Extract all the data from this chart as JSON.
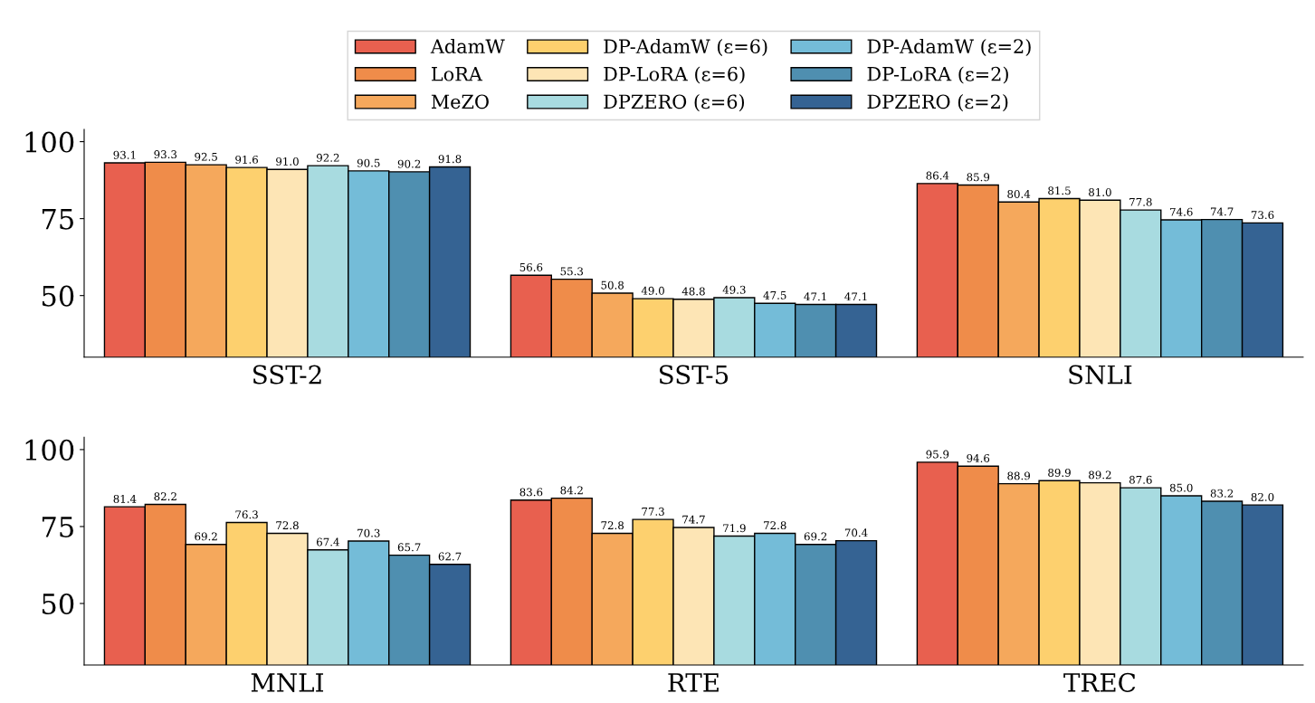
{
  "chart_data": [
    {
      "type": "bar",
      "categories": [
        "SST-2",
        "SST-5",
        "SNLI"
      ],
      "ylim": [
        30,
        104
      ],
      "yticks": [
        50,
        75,
        100
      ],
      "legend": "top",
      "grid": false,
      "series": [
        {
          "name": "AdamW",
          "color": "#e8604f",
          "values": [
            93.1,
            56.6,
            86.4
          ],
          "value_labels": [
            "93.1",
            "56.6",
            "86.4"
          ]
        },
        {
          "name": "LoRA",
          "color": "#ef8c4a",
          "values": [
            93.3,
            55.3,
            85.9
          ],
          "value_labels": [
            "93.3",
            "55.3",
            "85.9"
          ]
        },
        {
          "name": "MeZO",
          "color": "#f5a85c",
          "values": [
            92.5,
            50.8,
            80.4
          ],
          "value_labels": [
            "92.5",
            "50.8",
            "80.4"
          ]
        },
        {
          "name": "DP-AdamW (ε=6)",
          "color": "#fdd06e",
          "values": [
            91.6,
            49.0,
            81.5
          ],
          "value_labels": [
            "91.6",
            "49.0",
            "81.5"
          ]
        },
        {
          "name": "DP-LoRA (ε=6)",
          "color": "#fde5b5",
          "values": [
            91.0,
            48.8,
            81.0
          ],
          "value_labels": [
            "91.0",
            "48.8",
            "81.0"
          ]
        },
        {
          "name": "DPZERO (ε=6)",
          "color": "#a8dbe0",
          "values": [
            92.2,
            49.3,
            77.8
          ],
          "value_labels": [
            "92.2",
            "49.3",
            "77.8"
          ]
        },
        {
          "name": "DP-AdamW (ε=2)",
          "color": "#74bcd8",
          "values": [
            90.5,
            47.5,
            74.6
          ],
          "value_labels": [
            "90.5",
            "47.5",
            "74.6"
          ]
        },
        {
          "name": "DP-LoRA (ε=2)",
          "color": "#4f8fb0",
          "values": [
            90.2,
            47.1,
            74.7
          ],
          "value_labels": [
            "90.2",
            "47.1",
            "74.7"
          ]
        },
        {
          "name": "DPZERO (ε=2)",
          "color": "#356393",
          "values": [
            91.8,
            47.1,
            73.6
          ],
          "value_labels": [
            "91.8",
            "47.1",
            "73.6"
          ]
        }
      ]
    },
    {
      "type": "bar",
      "categories": [
        "MNLI",
        "RTE",
        "TREC"
      ],
      "ylim": [
        30,
        104
      ],
      "yticks": [
        50,
        75,
        100
      ],
      "grid": false,
      "series": [
        {
          "color": "#e8604f",
          "values": [
            81.4,
            83.6,
            95.9
          ],
          "value_labels": [
            "81.4",
            "83.6",
            "95.9"
          ]
        },
        {
          "color": "#ef8c4a",
          "values": [
            82.2,
            84.2,
            94.6
          ],
          "value_labels": [
            "82.2",
            "84.2",
            "94.6"
          ]
        },
        {
          "color": "#f5a85c",
          "values": [
            69.2,
            72.8,
            88.9
          ],
          "value_labels": [
            "69.2",
            "72.8",
            "88.9"
          ]
        },
        {
          "color": "#fdd06e",
          "values": [
            76.3,
            77.3,
            89.9
          ],
          "value_labels": [
            "76.3",
            "77.3",
            "89.9"
          ]
        },
        {
          "color": "#fde5b5",
          "values": [
            72.8,
            74.7,
            89.2
          ],
          "value_labels": [
            "72.8",
            "74.7",
            "89.2"
          ]
        },
        {
          "color": "#a8dbe0",
          "values": [
            67.4,
            71.9,
            87.6
          ],
          "value_labels": [
            "67.4",
            "71.9",
            "87.6"
          ]
        },
        {
          "color": "#74bcd8",
          "values": [
            70.3,
            72.8,
            85.0
          ],
          "value_labels": [
            "70.3",
            "72.8",
            "85.0"
          ]
        },
        {
          "color": "#4f8fb0",
          "values": [
            65.7,
            69.2,
            83.2
          ],
          "value_labels": [
            "65.7",
            "69.2",
            "83.2"
          ]
        },
        {
          "color": "#356393",
          "values": [
            62.7,
            70.4,
            82.0
          ],
          "value_labels": [
            "62.7",
            "70.4",
            "82.0"
          ]
        }
      ]
    }
  ]
}
